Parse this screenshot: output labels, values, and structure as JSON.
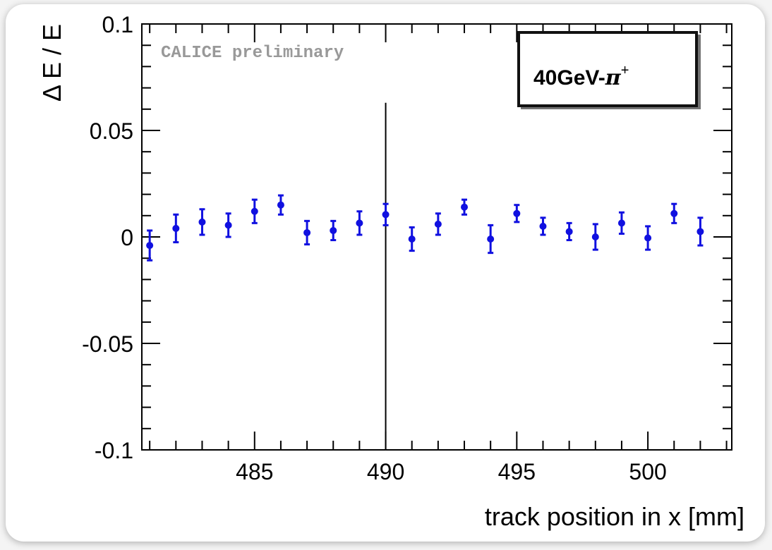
{
  "chart_data": {
    "type": "scatter",
    "title": "",
    "xlabel": "track position in x [mm]",
    "ylabel": "Δ E / E",
    "xlim": [
      480.7,
      503.2
    ],
    "ylim": [
      -0.1,
      0.1
    ],
    "x_ticks": [
      {
        "value": 485,
        "label": "485"
      },
      {
        "value": 490,
        "label": "490"
      },
      {
        "value": 495,
        "label": "495"
      },
      {
        "value": 500,
        "label": "500"
      }
    ],
    "y_ticks": [
      {
        "value": 0.1,
        "label": "0.1"
      },
      {
        "value": 0.05,
        "label": "0.05"
      },
      {
        "value": 0,
        "label": "0"
      },
      {
        "value": -0.05,
        "label": "-0.05"
      },
      {
        "value": -0.1,
        "label": "-0.1"
      }
    ],
    "annotation": "CALICE preliminary",
    "badge": {
      "text": "40GeV-",
      "symbol": "π",
      "superscript": "+"
    },
    "reference_line": {
      "x": 490,
      "y_top": 0.063
    },
    "marker_color": "#1010e0",
    "points": [
      {
        "x": 481,
        "y": -0.004,
        "err": 0.007
      },
      {
        "x": 482,
        "y": 0.004,
        "err": 0.0065
      },
      {
        "x": 483,
        "y": 0.007,
        "err": 0.006
      },
      {
        "x": 484,
        "y": 0.0055,
        "err": 0.0055
      },
      {
        "x": 485,
        "y": 0.012,
        "err": 0.0055
      },
      {
        "x": 486,
        "y": 0.015,
        "err": 0.0045
      },
      {
        "x": 487,
        "y": 0.002,
        "err": 0.0055
      },
      {
        "x": 488,
        "y": 0.003,
        "err": 0.0045
      },
      {
        "x": 489,
        "y": 0.0065,
        "err": 0.0055
      },
      {
        "x": 490,
        "y": 0.0105,
        "err": 0.005
      },
      {
        "x": 491,
        "y": -0.001,
        "err": 0.0055
      },
      {
        "x": 492,
        "y": 0.006,
        "err": 0.005
      },
      {
        "x": 493,
        "y": 0.014,
        "err": 0.0035
      },
      {
        "x": 494,
        "y": -0.001,
        "err": 0.0065
      },
      {
        "x": 495,
        "y": 0.011,
        "err": 0.004
      },
      {
        "x": 496,
        "y": 0.005,
        "err": 0.004
      },
      {
        "x": 497,
        "y": 0.0025,
        "err": 0.004
      },
      {
        "x": 498,
        "y": 0.0,
        "err": 0.006
      },
      {
        "x": 499,
        "y": 0.0065,
        "err": 0.005
      },
      {
        "x": 500,
        "y": -0.0005,
        "err": 0.0055
      },
      {
        "x": 501,
        "y": 0.011,
        "err": 0.0045
      },
      {
        "x": 502,
        "y": 0.0025,
        "err": 0.0065
      }
    ]
  }
}
